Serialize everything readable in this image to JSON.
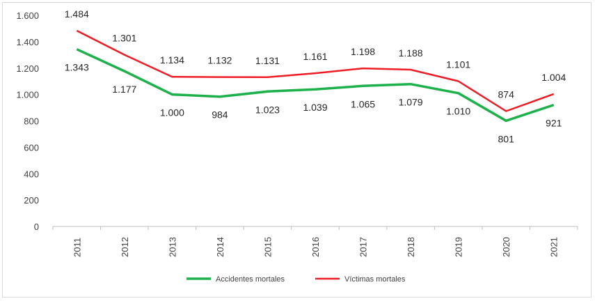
{
  "chart_data": {
    "type": "line",
    "categories": [
      "2011",
      "2012",
      "2013",
      "2014",
      "2015",
      "2016",
      "2017",
      "2018",
      "2019",
      "2020",
      "2021"
    ],
    "series": [
      {
        "name": "Accidentes mortales",
        "color": "#1db14b",
        "values": [
          1343,
          1177,
          1000,
          984,
          1023,
          1039,
          1065,
          1079,
          1010,
          801,
          921
        ],
        "labels": [
          "1.343",
          "1.177",
          "1.000",
          "984",
          "1.023",
          "1.039",
          "1.065",
          "1.079",
          "1.010",
          "801",
          "921"
        ]
      },
      {
        "name": "Víctimas mortales",
        "color": "#ee1c25",
        "values": [
          1484,
          1301,
          1134,
          1132,
          1131,
          1161,
          1198,
          1188,
          1101,
          874,
          1004
        ],
        "labels": [
          "1.484",
          "1.301",
          "1.134",
          "1.132",
          "1.131",
          "1.161",
          "1.198",
          "1.188",
          "1.101",
          "874",
          "1.004"
        ]
      }
    ],
    "yticks": [
      {
        "value": 0,
        "label": "0"
      },
      {
        "value": 200,
        "label": "200"
      },
      {
        "value": 400,
        "label": "400"
      },
      {
        "value": 600,
        "label": "600"
      },
      {
        "value": 800,
        "label": "800"
      },
      {
        "value": 1000,
        "label": "1.000"
      },
      {
        "value": 1200,
        "label": "1.200"
      },
      {
        "value": 1400,
        "label": "1.400"
      },
      {
        "value": 1600,
        "label": "1.600"
      }
    ],
    "ylim": [
      0,
      1600
    ],
    "grid": false,
    "legend": "bottom",
    "title": "",
    "xlabel": "",
    "ylabel": ""
  }
}
